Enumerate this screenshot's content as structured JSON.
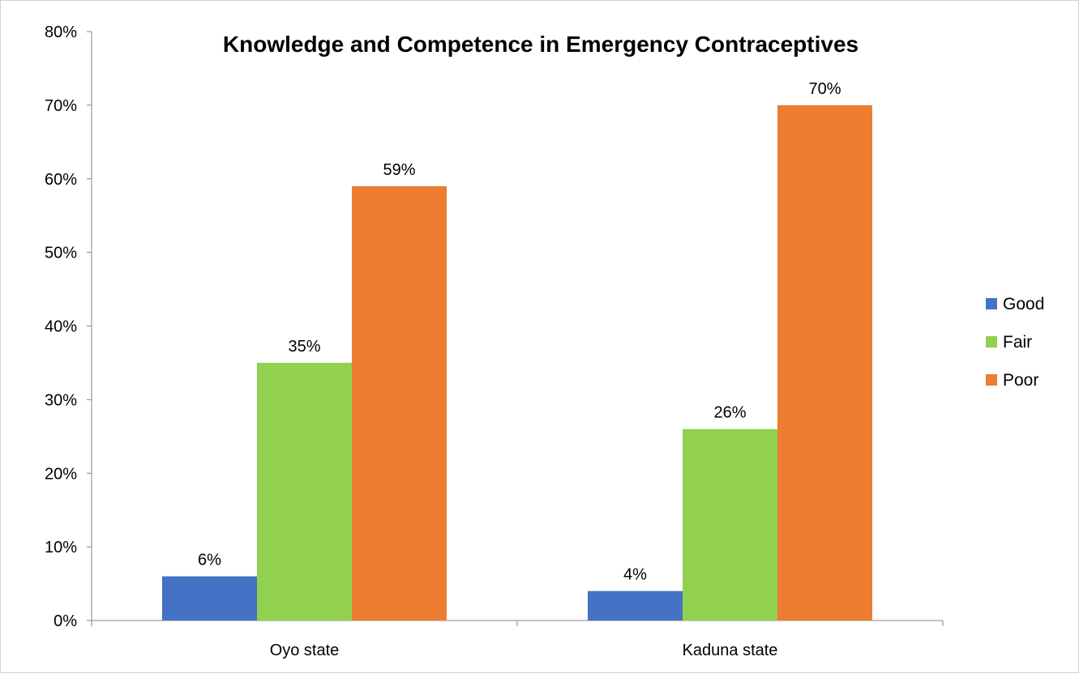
{
  "chart_data": {
    "type": "bar",
    "title": "Knowledge and Competence in Emergency Contraceptives",
    "categories": [
      "Oyo state",
      "Kaduna state"
    ],
    "series": [
      {
        "name": "Good",
        "color": "#4472C4",
        "values": [
          6,
          4
        ],
        "labels": [
          "6%",
          "4%"
        ]
      },
      {
        "name": "Fair",
        "color": "#92D050",
        "values": [
          35,
          26
        ],
        "labels": [
          "35%",
          "26%"
        ]
      },
      {
        "name": "Poor",
        "color": "#ED7D31",
        "values": [
          59,
          70
        ],
        "labels": [
          "59%",
          "70%"
        ]
      }
    ],
    "ylim": [
      0,
      80
    ],
    "yticks": [
      {
        "value": 0,
        "label": "0%"
      },
      {
        "value": 10,
        "label": "10%"
      },
      {
        "value": 20,
        "label": "20%"
      },
      {
        "value": 30,
        "label": "30%"
      },
      {
        "value": 40,
        "label": "40%"
      },
      {
        "value": 50,
        "label": "50%"
      },
      {
        "value": 60,
        "label": "60%"
      },
      {
        "value": 70,
        "label": "70%"
      },
      {
        "value": 80,
        "label": "80%"
      }
    ],
    "grid": false,
    "legend": "right"
  }
}
